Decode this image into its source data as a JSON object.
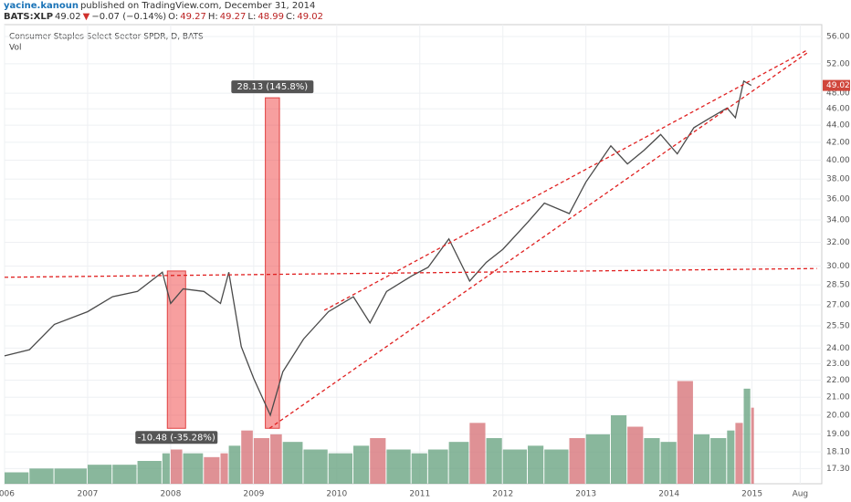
{
  "header": {
    "user": "yacine.kanoun",
    "published": "published on TradingView.com, December 31, 2014",
    "symbol": "BATS:XLP",
    "last": "49.02",
    "arrow": "▼",
    "change": "−0.07 (−0.14%)",
    "open_label": "O:",
    "open": "49.27",
    "high_label": "H:",
    "high": "49.27",
    "low_label": "L:",
    "low": "48.99",
    "close_label": "C:",
    "close": "49.02"
  },
  "chart_data": {
    "type": "line",
    "legend_title": "Consumer Staples Select Sector SPDR, D, BATS",
    "volume_label": "Vol",
    "x": [
      2006.0,
      2006.3,
      2006.6,
      2007.0,
      2007.3,
      2007.6,
      2007.9,
      2008.0,
      2008.15,
      2008.4,
      2008.6,
      2008.7,
      2008.85,
      2009.0,
      2009.2,
      2009.35,
      2009.6,
      2009.9,
      2010.2,
      2010.4,
      2010.6,
      2010.9,
      2011.1,
      2011.35,
      2011.6,
      2011.8,
      2012.0,
      2012.3,
      2012.5,
      2012.8,
      2013.0,
      2013.3,
      2013.5,
      2013.7,
      2013.9,
      2014.1,
      2014.3,
      2014.5,
      2014.7,
      2014.8,
      2014.9,
      2014.99
    ],
    "series": [
      {
        "name": "Price",
        "color": "#4a4a4a",
        "values": [
          23.5,
          23.9,
          25.6,
          26.5,
          27.6,
          28.0,
          29.5,
          27.1,
          28.2,
          28.0,
          27.1,
          29.5,
          24.1,
          22.1,
          20.0,
          22.5,
          24.6,
          26.5,
          27.6,
          25.7,
          28.0,
          29.2,
          29.9,
          32.3,
          28.8,
          30.3,
          31.4,
          33.8,
          35.6,
          34.6,
          37.7,
          41.6,
          39.6,
          41.1,
          42.9,
          40.7,
          43.7,
          44.9,
          46.1,
          44.9,
          49.6,
          49.02
        ]
      }
    ],
    "volume": [
      3,
      4,
      4,
      5,
      5,
      6,
      8,
      9,
      8,
      7,
      8,
      10,
      14,
      12,
      13,
      11,
      9,
      8,
      10,
      12,
      9,
      8,
      9,
      11,
      16,
      12,
      9,
      10,
      9,
      12,
      13,
      18,
      15,
      12,
      11,
      27,
      13,
      12,
      14,
      16,
      25,
      20
    ],
    "vlim": [
      0,
      30
    ],
    "xlim": [
      2006,
      2015.84
    ],
    "xticks": [
      {
        "value": 2006,
        "label": "006"
      },
      2007,
      2008,
      2009,
      2010,
      2011,
      2012,
      2013,
      2014,
      2015,
      {
        "value": 2015.58,
        "label": "Aug"
      }
    ],
    "ylim": [
      16.6,
      57.4
    ],
    "log_y": true,
    "yticks": [
      {
        "value": 56,
        "label": "56.00"
      },
      {
        "value": 52,
        "label": "52.00"
      },
      {
        "value": 48,
        "label": "48.00"
      },
      {
        "value": 46,
        "label": "46.00"
      },
      {
        "value": 44,
        "label": "44.00"
      },
      {
        "value": 42,
        "label": "42.00"
      },
      {
        "value": 40,
        "label": "40.00"
      },
      {
        "value": 38,
        "label": "38.00"
      },
      {
        "value": 36,
        "label": "36.00"
      },
      {
        "value": 34,
        "label": "34.00"
      },
      {
        "value": 32,
        "label": "32.00"
      },
      {
        "value": 30,
        "label": "30.00"
      },
      {
        "value": 28.5,
        "label": "28.50"
      },
      {
        "value": 27,
        "label": "27.00"
      },
      {
        "value": 25.5,
        "label": "25.50"
      },
      {
        "value": 24,
        "label": "24.00"
      },
      {
        "value": 23,
        "label": "23.00"
      },
      {
        "value": 22,
        "label": "22.00"
      },
      {
        "value": 21,
        "label": "21.00"
      },
      {
        "value": 20,
        "label": "20.00"
      },
      {
        "value": 19,
        "label": "19.00"
      },
      {
        "value": 18.1,
        "label": "18.10"
      },
      {
        "value": 17.3,
        "label": "17.30"
      }
    ],
    "grid": true,
    "last_price": {
      "value": 49.02,
      "label": "49.02"
    },
    "trendlines": [
      {
        "x": [
          2006.0,
          2015.78
        ],
        "y": [
          29.1,
          29.8
        ]
      },
      {
        "x": [
          2009.85,
          2015.67
        ],
        "y": [
          26.6,
          54.0
        ]
      },
      {
        "x": [
          2009.19,
          2015.67
        ],
        "y": [
          19.3,
          53.6
        ]
      }
    ],
    "measures": [
      {
        "x": [
          2007.96,
          2008.18
        ],
        "y": [
          29.6,
          19.3
        ],
        "label": "-10.48 (-35.28%)"
      },
      {
        "x": [
          2009.14,
          2009.31
        ],
        "y": [
          19.3,
          47.4
        ],
        "label": "28.13 (145.8%)"
      }
    ]
  }
}
